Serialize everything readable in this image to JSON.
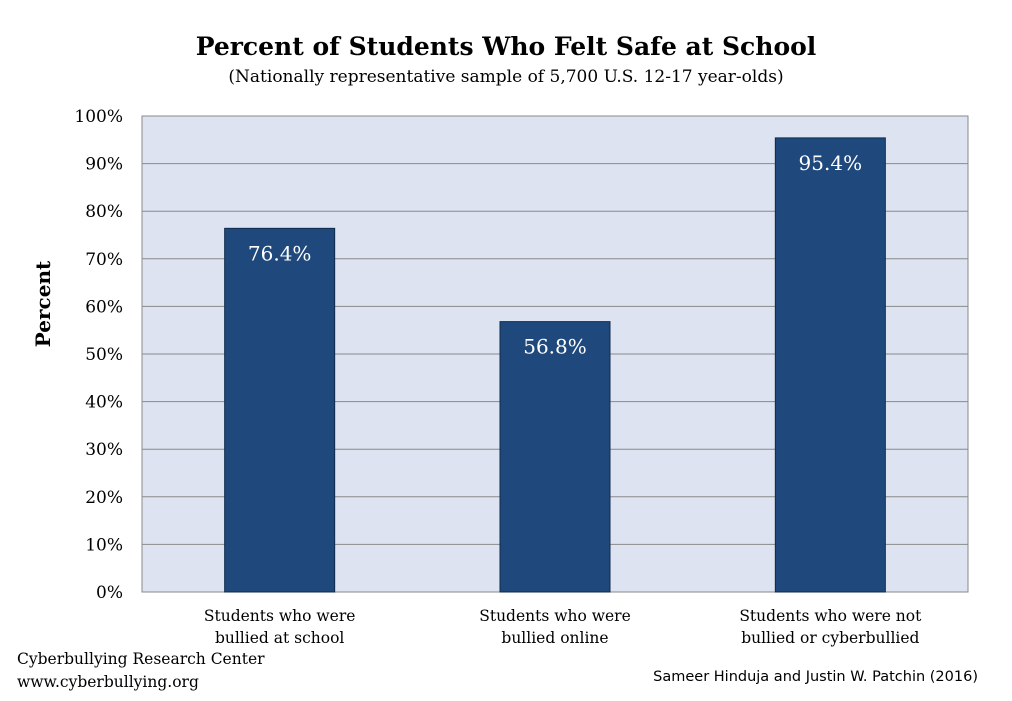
{
  "chart_data": {
    "type": "bar",
    "title": "Percent of Students Who Felt Safe at School",
    "subtitle": "(Nationally representative sample of 5,700 U.S. 12-17 year-olds)",
    "ylabel": "Percent",
    "xlabel": "",
    "ylim": [
      0,
      100
    ],
    "y_ticks": [
      "0%",
      "10%",
      "20%",
      "30%",
      "40%",
      "50%",
      "60%",
      "70%",
      "80%",
      "90%",
      "100%"
    ],
    "grid": true,
    "categories": [
      [
        "Students who were",
        "bullied at school"
      ],
      [
        "Students who were",
        "bullied online"
      ],
      [
        "Students who were not",
        "bullied or cyberbullied"
      ]
    ],
    "values": [
      76.4,
      56.8,
      95.4
    ],
    "data_labels": [
      "76.4%",
      "56.8%",
      "95.4%"
    ],
    "colors": {
      "bar": "#1f497d",
      "plot_background": "#dde3f0",
      "grid": "#8a8a8a",
      "data_label": "#ffffff"
    }
  },
  "footer": {
    "org": "Cyberbullying Research Center",
    "url": "www.cyberbullying.org",
    "credit": "Sameer Hinduja and Justin W. Patchin (2016)"
  }
}
